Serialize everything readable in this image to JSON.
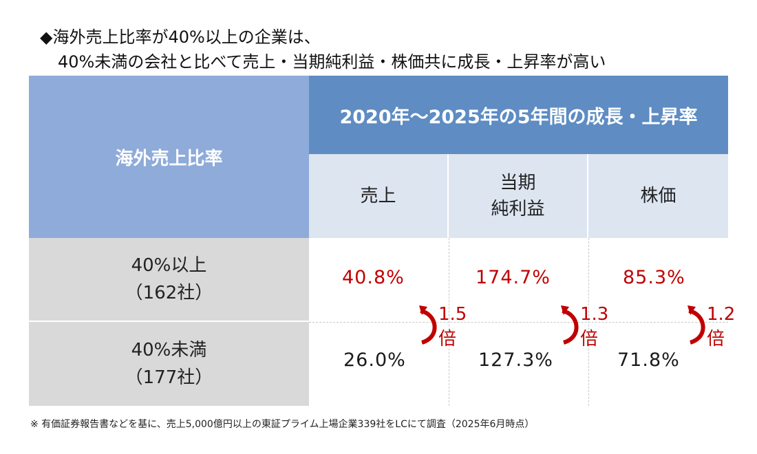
{
  "headline": {
    "line1": "◆海外売上比率が40%以上の企業は、",
    "line2": "40%未満の会社と比べて売上・当期純利益・株価共に成長・上昇率が高い"
  },
  "table": {
    "ratio_header": "海外売上比率",
    "period_header": "2020年～2025年の5年間の成長・上昇率",
    "columns": [
      {
        "line1": "売上",
        "line2": ""
      },
      {
        "line1": "当期",
        "line2": "純利益"
      },
      {
        "line1": "株価",
        "line2": ""
      }
    ],
    "rows": [
      {
        "label1": "40%以上",
        "label2": "（162社）",
        "values": [
          "40.8%",
          "174.7%",
          "85.3%"
        ]
      },
      {
        "label1": "40%未満",
        "label2": "（177社）",
        "values": [
          "26.0%",
          "127.3%",
          "71.8%"
        ]
      }
    ],
    "multipliers": [
      {
        "value": "1.5",
        "unit": "倍"
      },
      {
        "value": "1.3",
        "unit": "倍"
      },
      {
        "value": "1.2",
        "unit": "倍"
      }
    ]
  },
  "footnote": "※ 有価証券報告書などを基に、売上5,000億円以上の東証プライム上場企業339社をLCにて調査（2025年6月時点）",
  "colors": {
    "header_dark": "#5e8cc3",
    "header_light": "#8eabd9",
    "subheader": "#dde5f1",
    "row_label": "#d9d9d9",
    "accent_red": "#c00000"
  }
}
